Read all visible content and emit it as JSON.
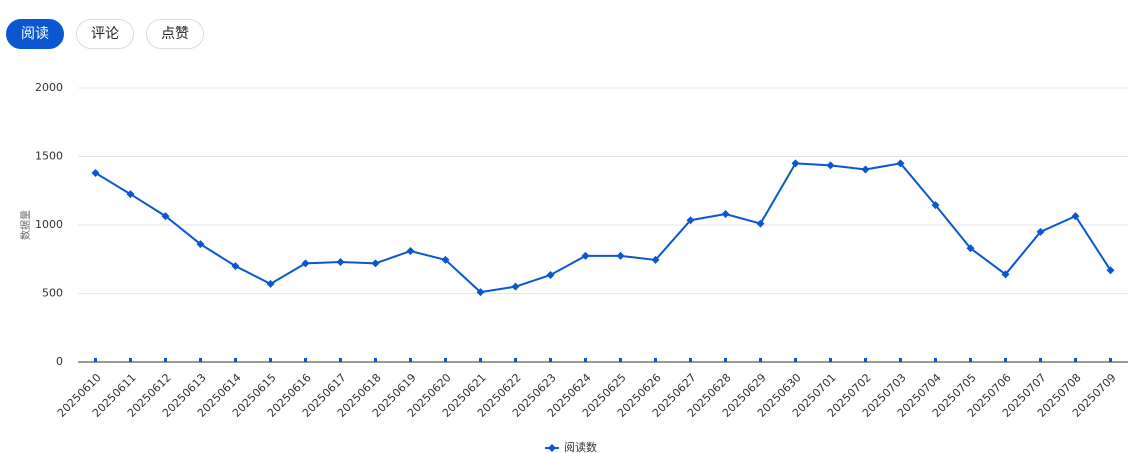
{
  "tabs": [
    "阅读",
    "评论",
    "点赞"
  ],
  "active_tab": 0,
  "chart_data": {
    "type": "line",
    "y_label": "数据量",
    "categories": [
      "20250610",
      "20250611",
      "20250612",
      "20250613",
      "20250614",
      "20250615",
      "20250616",
      "20250617",
      "20250618",
      "20250619",
      "20250620",
      "20250621",
      "20250622",
      "20250623",
      "20250624",
      "20250625",
      "20250626",
      "20250627",
      "20250628",
      "20250629",
      "20250630",
      "20250701",
      "20250702",
      "20250703",
      "20250704",
      "20250705",
      "20250706",
      "20250707",
      "20250708",
      "20250709"
    ],
    "series": [
      {
        "name": "阅读数",
        "color": "#0b57d0",
        "values": [
          1380,
          1225,
          1065,
          860,
          700,
          570,
          720,
          730,
          720,
          810,
          745,
          510,
          550,
          635,
          775,
          775,
          745,
          1035,
          1080,
          1010,
          1450,
          1435,
          1405,
          1450,
          1145,
          830,
          640,
          950,
          1065,
          670
        ]
      }
    ],
    "ylim": [
      0,
      2000
    ],
    "yticks": [
      0,
      500,
      1000,
      1500,
      2000
    ],
    "grid": true,
    "legend": "bottom"
  }
}
